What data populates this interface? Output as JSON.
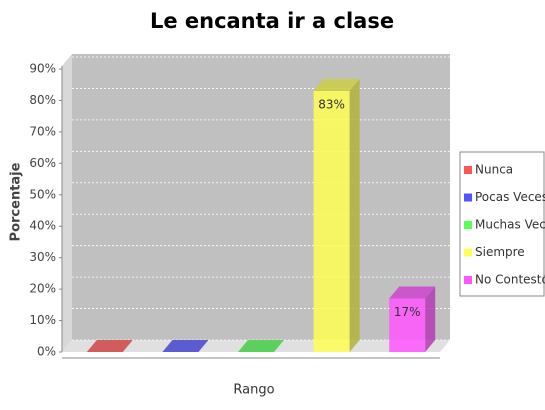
{
  "chart_data": {
    "type": "bar3d",
    "title": "Le encanta ir a clase",
    "y_label": "Porcentaje",
    "x_label": "Rango",
    "ylim": [
      0,
      90
    ],
    "yticks": [
      {
        "value": 0,
        "label": "0%"
      },
      {
        "value": 10,
        "label": "10%"
      },
      {
        "value": 20,
        "label": "20%"
      },
      {
        "value": 30,
        "label": "30%"
      },
      {
        "value": 40,
        "label": "40%"
      },
      {
        "value": 50,
        "label": "50%"
      },
      {
        "value": 60,
        "label": "60%"
      },
      {
        "value": 70,
        "label": "70%"
      },
      {
        "value": 80,
        "label": "80%"
      },
      {
        "value": 90,
        "label": "90%"
      }
    ],
    "grid": true,
    "legend": "right",
    "series": [
      {
        "name": "Nunca",
        "color": "#ff5555",
        "values": [
          0
        ]
      },
      {
        "name": "Pocas Veces",
        "color": "#5555ff",
        "values": [
          0
        ]
      },
      {
        "name": "Muchas Veces",
        "color": "#55ff55",
        "values": [
          0
        ]
      },
      {
        "name": "Siempre",
        "color": "#ffff55",
        "values": [
          83
        ],
        "value_labels": [
          "83%"
        ]
      },
      {
        "name": "No Contestó",
        "color": "#ff55ff",
        "values": [
          17
        ],
        "value_labels": [
          "17%"
        ]
      }
    ]
  }
}
